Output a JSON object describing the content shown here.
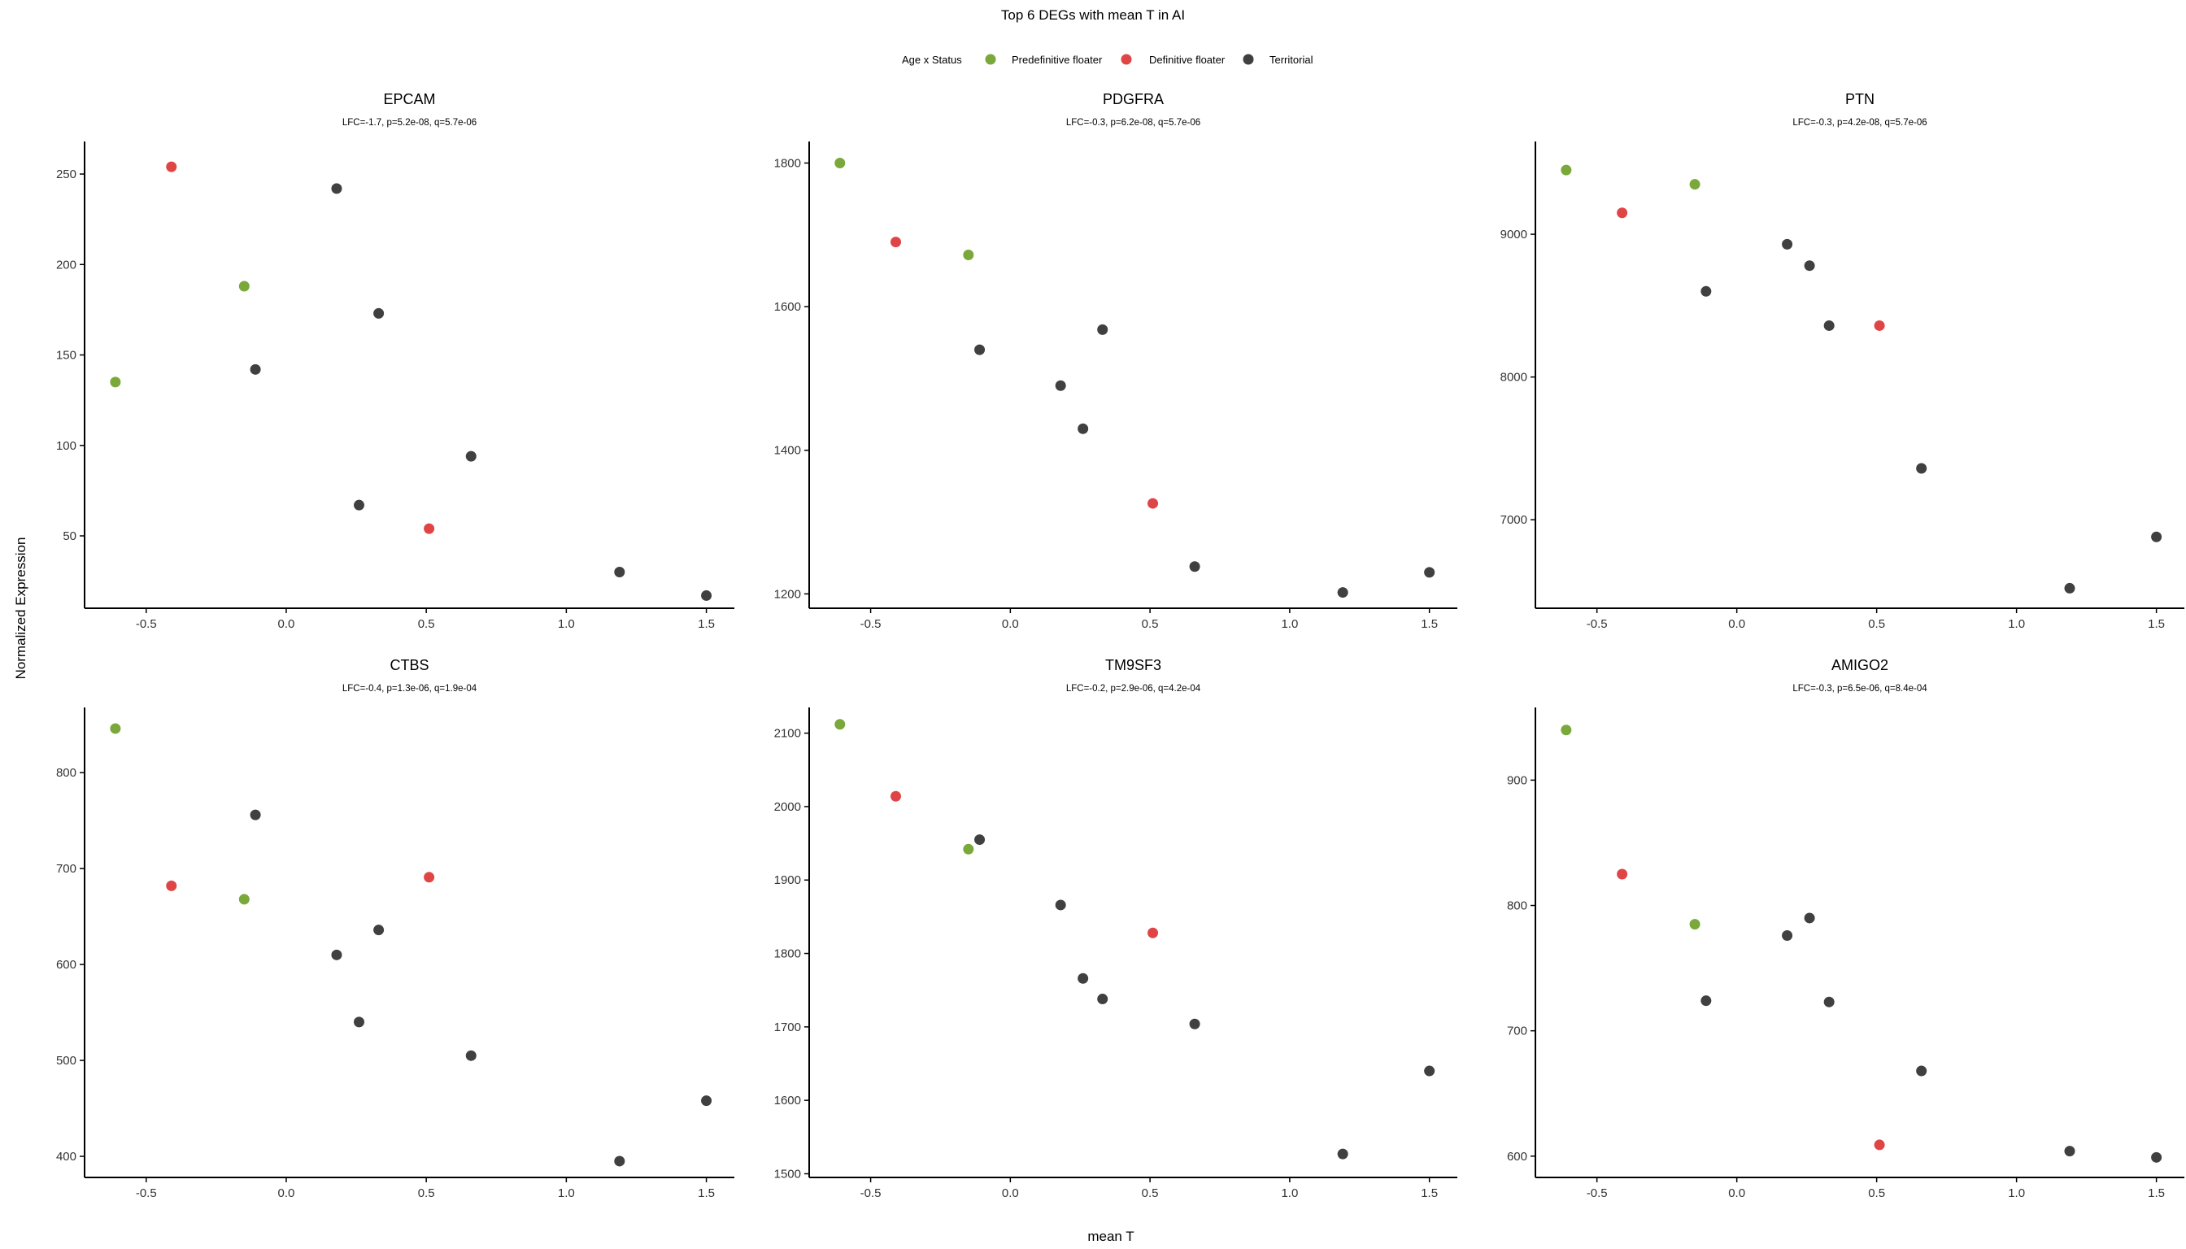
{
  "figure": {
    "title": "Top 6 DEGs with mean T in AI",
    "xlabel": "mean T",
    "ylabel": "Normalized Expression"
  },
  "legend": {
    "title": "Age x Status",
    "placement": "top-center",
    "items": [
      {
        "label": "Predefinitive floater",
        "color": "#7aa83a"
      },
      {
        "label": "Definitive floater",
        "color": "#e04545"
      },
      {
        "label": "Territorial",
        "color": "#404040"
      }
    ]
  },
  "colors": {
    "Predefinitive floater": "#7aa83a",
    "Definitive floater": "#e04545",
    "Territorial": "#404040",
    "axis": "#000000"
  },
  "chart_data": [
    {
      "type": "scatter",
      "title": "EPCAM",
      "subtitle": "LFC=-1.7, p=5.2e-08, q=5.7e-06",
      "grid": false,
      "xlim": [
        -0.72,
        1.6
      ],
      "ylim": [
        10,
        268
      ],
      "xticks": [
        -0.5,
        0.0,
        0.5,
        1.0,
        1.5
      ],
      "xtick_labels": [
        "-0.5",
        "0.0",
        "0.5",
        "1.0",
        "1.5"
      ],
      "yticks": [
        50,
        100,
        150,
        200,
        250
      ],
      "ytick_labels": [
        "50",
        "100",
        "150",
        "200",
        "250"
      ],
      "series": [
        {
          "name": "Predefinitive floater",
          "points": [
            [
              -0.61,
              135
            ],
            [
              -0.15,
              188
            ]
          ]
        },
        {
          "name": "Definitive floater",
          "points": [
            [
              -0.41,
              254
            ],
            [
              0.51,
              54
            ]
          ]
        },
        {
          "name": "Territorial",
          "points": [
            [
              0.18,
              242
            ],
            [
              -0.11,
              142
            ],
            [
              0.33,
              173
            ],
            [
              0.26,
              67
            ],
            [
              0.66,
              94
            ],
            [
              1.19,
              30
            ],
            [
              1.5,
              17
            ]
          ]
        }
      ]
    },
    {
      "type": "scatter",
      "title": "PDGFRA",
      "subtitle": "LFC=-0.3, p=6.2e-08, q=5.7e-06",
      "grid": false,
      "xlim": [
        -0.72,
        1.6
      ],
      "ylim": [
        1180,
        1830
      ],
      "xticks": [
        -0.5,
        0.0,
        0.5,
        1.0,
        1.5
      ],
      "xtick_labels": [
        "-0.5",
        "0.0",
        "0.5",
        "1.0",
        "1.5"
      ],
      "yticks": [
        1200,
        1400,
        1600,
        1800
      ],
      "ytick_labels": [
        "1200",
        "1400",
        "1600",
        "1800"
      ],
      "series": [
        {
          "name": "Predefinitive floater",
          "points": [
            [
              -0.61,
              1800
            ],
            [
              -0.15,
              1672
            ]
          ]
        },
        {
          "name": "Definitive floater",
          "points": [
            [
              -0.41,
              1690
            ],
            [
              0.51,
              1326
            ]
          ]
        },
        {
          "name": "Territorial",
          "points": [
            [
              -0.11,
              1540
            ],
            [
              0.33,
              1568
            ],
            [
              0.18,
              1490
            ],
            [
              0.26,
              1430
            ],
            [
              0.66,
              1238
            ],
            [
              1.19,
              1202
            ],
            [
              1.5,
              1230
            ]
          ]
        }
      ]
    },
    {
      "type": "scatter",
      "title": "PTN",
      "subtitle": "LFC=-0.3, p=4.2e-08, q=5.7e-06",
      "grid": false,
      "xlim": [
        -0.72,
        1.6
      ],
      "ylim": [
        6380,
        9650
      ],
      "xticks": [
        -0.5,
        0.0,
        0.5,
        1.0,
        1.5
      ],
      "xtick_labels": [
        "-0.5",
        "0.0",
        "0.5",
        "1.0",
        "1.5"
      ],
      "yticks": [
        7000,
        8000,
        9000
      ],
      "ytick_labels": [
        "7000",
        "8000",
        "9000"
      ],
      "series": [
        {
          "name": "Predefinitive floater",
          "points": [
            [
              -0.61,
              9450
            ],
            [
              -0.15,
              9350
            ]
          ]
        },
        {
          "name": "Definitive floater",
          "points": [
            [
              -0.41,
              9150
            ],
            [
              0.51,
              8360
            ]
          ]
        },
        {
          "name": "Territorial",
          "points": [
            [
              0.18,
              8930
            ],
            [
              0.26,
              8780
            ],
            [
              -0.11,
              8600
            ],
            [
              0.33,
              8360
            ],
            [
              0.66,
              7360
            ],
            [
              1.19,
              6520
            ],
            [
              1.5,
              6880
            ]
          ]
        }
      ]
    },
    {
      "type": "scatter",
      "title": "CTBS",
      "subtitle": "LFC=-0.4, p=1.3e-06, q=1.9e-04",
      "grid": false,
      "xlim": [
        -0.72,
        1.6
      ],
      "ylim": [
        378,
        868
      ],
      "xticks": [
        -0.5,
        0.0,
        0.5,
        1.0,
        1.5
      ],
      "xtick_labels": [
        "-0.5",
        "0.0",
        "0.5",
        "1.0",
        "1.5"
      ],
      "yticks": [
        400,
        500,
        600,
        700,
        800
      ],
      "ytick_labels": [
        "400",
        "500",
        "600",
        "700",
        "800"
      ],
      "series": [
        {
          "name": "Predefinitive floater",
          "points": [
            [
              -0.61,
              846
            ],
            [
              -0.15,
              668
            ]
          ]
        },
        {
          "name": "Definitive floater",
          "points": [
            [
              -0.41,
              682
            ],
            [
              0.51,
              691
            ]
          ]
        },
        {
          "name": "Territorial",
          "points": [
            [
              -0.11,
              756
            ],
            [
              0.33,
              636
            ],
            [
              0.18,
              610
            ],
            [
              0.26,
              540
            ],
            [
              0.66,
              505
            ],
            [
              1.19,
              395
            ],
            [
              1.5,
              458
            ]
          ]
        }
      ]
    },
    {
      "type": "scatter",
      "title": "TM9SF3",
      "subtitle": "LFC=-0.2, p=2.9e-06, q=4.2e-04",
      "grid": false,
      "xlim": [
        -0.72,
        1.6
      ],
      "ylim": [
        1495,
        2135
      ],
      "xticks": [
        -0.5,
        0.0,
        0.5,
        1.0,
        1.5
      ],
      "xtick_labels": [
        "-0.5",
        "0.0",
        "0.5",
        "1.0",
        "1.5"
      ],
      "yticks": [
        1500,
        1600,
        1700,
        1800,
        1900,
        2000,
        2100
      ],
      "ytick_labels": [
        "1500",
        "1600",
        "1700",
        "1800",
        "1900",
        "2000",
        "2100"
      ],
      "series": [
        {
          "name": "Predefinitive floater",
          "points": [
            [
              -0.61,
              2112
            ],
            [
              -0.15,
              1942
            ]
          ]
        },
        {
          "name": "Definitive floater",
          "points": [
            [
              -0.41,
              2014
            ],
            [
              0.51,
              1828
            ]
          ]
        },
        {
          "name": "Territorial",
          "points": [
            [
              -0.11,
              1955
            ],
            [
              0.18,
              1866
            ],
            [
              0.26,
              1766
            ],
            [
              0.33,
              1738
            ],
            [
              0.66,
              1704
            ],
            [
              1.19,
              1527
            ],
            [
              1.5,
              1640
            ]
          ]
        }
      ]
    },
    {
      "type": "scatter",
      "title": "AMIGO2",
      "subtitle": "LFC=-0.3, p=6.5e-06, q=8.4e-04",
      "grid": false,
      "xlim": [
        -0.72,
        1.6
      ],
      "ylim": [
        583,
        958
      ],
      "xticks": [
        -0.5,
        0.0,
        0.5,
        1.0,
        1.5
      ],
      "xtick_labels": [
        "-0.5",
        "0.0",
        "0.5",
        "1.0",
        "1.5"
      ],
      "yticks": [
        600,
        700,
        800,
        900
      ],
      "ytick_labels": [
        "600",
        "700",
        "800",
        "900"
      ],
      "series": [
        {
          "name": "Predefinitive floater",
          "points": [
            [
              -0.61,
              940
            ],
            [
              -0.15,
              785
            ]
          ]
        },
        {
          "name": "Definitive floater",
          "points": [
            [
              -0.41,
              825
            ],
            [
              0.51,
              609
            ]
          ]
        },
        {
          "name": "Territorial",
          "points": [
            [
              0.26,
              790
            ],
            [
              0.18,
              776
            ],
            [
              -0.11,
              724
            ],
            [
              0.33,
              723
            ],
            [
              0.66,
              668
            ],
            [
              1.19,
              604
            ],
            [
              1.5,
              599
            ]
          ]
        }
      ]
    }
  ]
}
